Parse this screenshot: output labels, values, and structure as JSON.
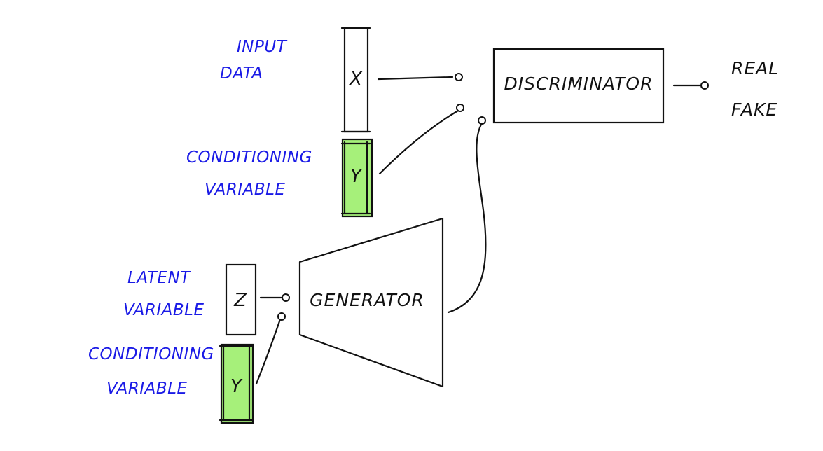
{
  "colors": {
    "label_blue": "#1a1ae6",
    "ink": "#111111",
    "conditioning_fill": "#a6f07a"
  },
  "labels": {
    "input_data_line1": "INPUT",
    "input_data_line2": "DATA",
    "conditioning_top_line1": "CONDITIONING",
    "conditioning_top_line2": "VARIABLE",
    "latent_line1": "LATENT",
    "latent_line2": "VARIABLE",
    "conditioning_bottom_line1": "CONDITIONING",
    "conditioning_bottom_line2": "VARIABLE",
    "output_real": "REAL",
    "output_fake": "FAKE"
  },
  "nodes": {
    "x": "X",
    "y_top": "Y",
    "z": "Z",
    "y_bottom": "Y",
    "discriminator": "DISCRIMINATOR",
    "generator": "GENERATOR"
  },
  "icons": {
    "arrowhead": "open-circle-arrowhead"
  }
}
